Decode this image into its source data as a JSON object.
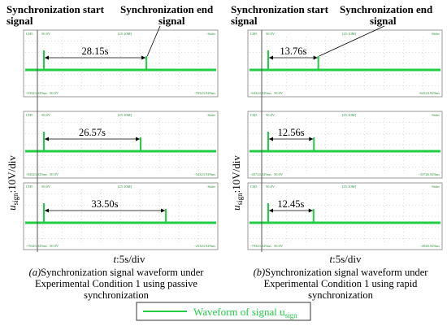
{
  "panels": [
    {
      "id": "a",
      "header_start": "Synchronization start signal",
      "header_start_l1": "Synchronization start",
      "header_start_l2": "signal",
      "header_end_l1": "Synchronization end",
      "header_end_l2": "signal",
      "ylabel_main": "u",
      "ylabel_sub": "sign",
      "ylabel_rest": ":10V/div",
      "xlabel_main": "t",
      "xlabel_rest": ":5s/div",
      "caption_prefix": "(a)",
      "caption_l1": "Synchronization signal waveform under",
      "caption_l2": "Experimental Condition 1 using passive",
      "caption_l3": "synchronization",
      "screens": [
        {
          "top_left": "CH5",
          "top_mid": "50.0V",
          "top_center": "[25:10M]",
          "top_right": "-Sider",
          "bottom_left": "-93323.929ms",
          "bottom_left2": "50.0V",
          "bottom_right": "-70323.929ms"
        },
        {
          "top_left": "CH5",
          "top_mid": "50.0V",
          "top_center": "[25:10M]",
          "top_right": "-Sider",
          "bottom_left": "-84323.929ms",
          "bottom_left2": "50.0V",
          "bottom_right": "-54323.929ms"
        },
        {
          "top_left": "CH5",
          "top_mid": "50.0V",
          "top_center": "[25:10M]",
          "top_right": "-Sider",
          "bottom_left": "-75343.929ms",
          "bottom_left2": "50.0V",
          "bottom_right": "-25343.929ms"
        }
      ]
    },
    {
      "id": "b",
      "header_start_l1": "Synchronization start",
      "header_start_l2": "signal",
      "header_end_l1": "Synchronization end",
      "header_end_l2": "signal",
      "ylabel_main": "u",
      "ylabel_sub": "sign",
      "ylabel_rest": ":10V/div",
      "xlabel_main": "t",
      "xlabel_rest": ":5s/div",
      "caption_prefix": "(b)",
      "caption_l1": "Synchronization signal waveform under",
      "caption_l2": "Experimental Condition 1 using rapid",
      "caption_l3": "synchronization",
      "screens": [
        {
          "top_left": "CH5",
          "top_mid": "50.0V",
          "top_center": "[25:10M]",
          "top_right": "-Sider",
          "bottom_left": "-64324.929ms",
          "bottom_left2": "50.0V",
          "bottom_right": "-64324.929ms"
        },
        {
          "top_left": "CH5",
          "top_mid": "50.0V",
          "top_center": "[25:10M]",
          "top_right": "-Sider",
          "bottom_left": "-43724.929ms",
          "bottom_left2": "50.0V",
          "bottom_right": "-33726.929ms"
        },
        {
          "top_left": "CH5",
          "top_mid": "50.0V",
          "top_center": "[25:10M]",
          "top_right": "-Sider",
          "bottom_left": "-79343.929ms",
          "bottom_left2": "50.0V",
          "bottom_right": "-4940.929ms"
        }
      ]
    }
  ],
  "legend": {
    "text": "Waveform of signal u",
    "sub": "sign",
    "color": "#22cc44"
  },
  "colors": {
    "trace": "#22cc44",
    "screen_border": "#9a9a9a",
    "grid": "#b8b8b8",
    "readout": "#2a8f3a",
    "text": "#000000"
  },
  "chart_data": [
    {
      "type": "line",
      "panel": "a",
      "xlabel": "t:5s/div",
      "ylabel": "usign:10V/div",
      "series": [
        {
          "name": "usign",
          "durations_s": [
            28.15,
            26.57,
            33.5
          ],
          "labels": [
            "28.15s",
            "26.57s",
            "33.50s"
          ]
        }
      ]
    },
    {
      "type": "line",
      "panel": "b",
      "xlabel": "t:5s/div",
      "ylabel": "usign:10V/div",
      "series": [
        {
          "name": "usign",
          "durations_s": [
            13.76,
            12.56,
            12.45
          ],
          "labels": [
            "13.76s",
            "12.56s",
            "12.45s"
          ]
        }
      ]
    }
  ]
}
